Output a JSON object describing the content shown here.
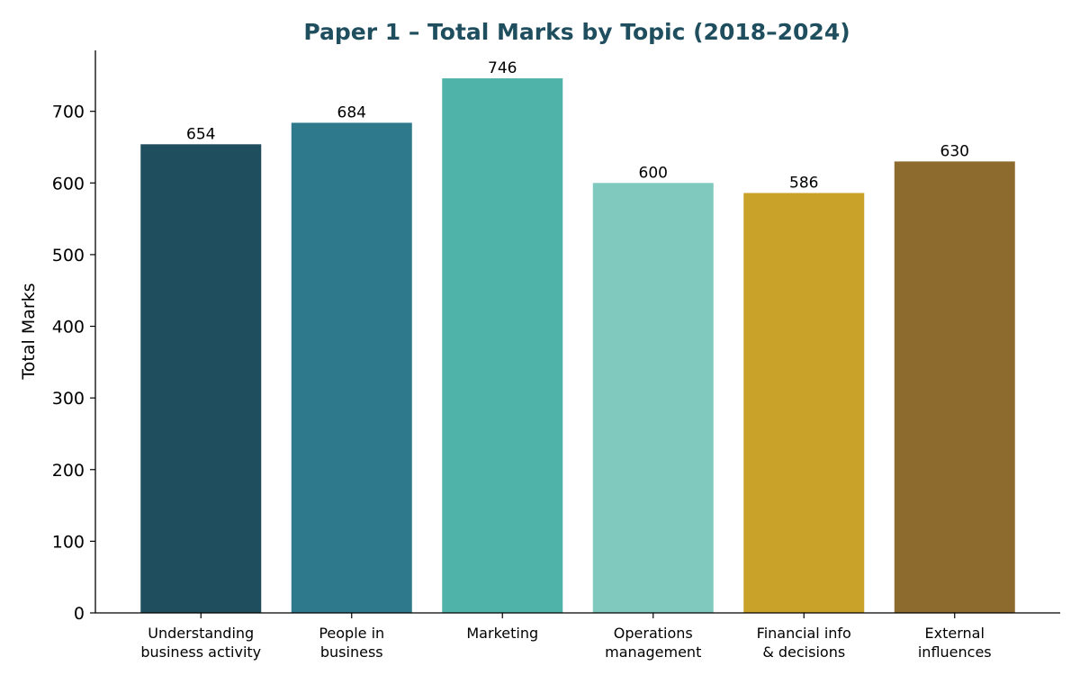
{
  "chart_data": {
    "type": "bar",
    "title": "Paper 1 – Total Marks by Topic (2018–2024)",
    "xlabel": "",
    "ylabel": "Total Marks",
    "categories": [
      [
        "Understanding",
        "business activity"
      ],
      [
        "People in",
        "business"
      ],
      [
        "Marketing"
      ],
      [
        "Operations",
        "management"
      ],
      [
        "Financial info",
        "& decisions"
      ],
      [
        "External",
        "influences"
      ]
    ],
    "values": [
      654,
      684,
      746,
      600,
      586,
      630
    ],
    "colors": [
      "#1f4e5f",
      "#2e7a8c",
      "#50b3aa",
      "#80c9bf",
      "#c9a229",
      "#8d6a2d"
    ],
    "ylim": [
      0,
      785
    ],
    "yticks": [
      0,
      100,
      200,
      300,
      400,
      500,
      600,
      700
    ],
    "title_color": "#1f4e5f",
    "grid": false
  }
}
